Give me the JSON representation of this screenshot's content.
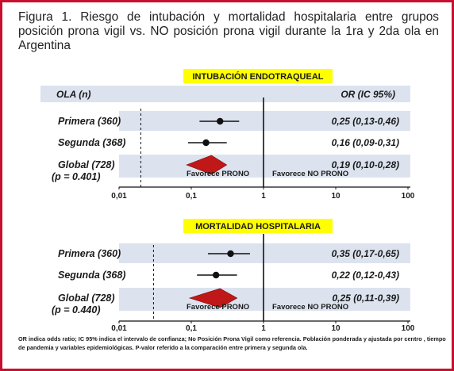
{
  "title": "Figura 1. Riesgo de intubación y mortalidad hospitalaria entre grupos posición prona vigil vs. NO posición prona vigil durante la 1ra y 2da ola en Argentina",
  "footnote": "OR indica odds ratio; IC 95% indica el intervalo de confianza; No Posición Prona Vigil  como referencia. Población ponderada y ajustada por centro , tiempo de pandemia y variables epidemiológicas. P-valor referido a la comparación entre primera y segunda ola.",
  "colors": {
    "frame": "#c8102e",
    "band": "#dce3ef",
    "header_box": "#ffff00",
    "diamond": "#c01818"
  },
  "chart_data": [
    {
      "type": "forest",
      "title": "INTUBACIÓN ENDOTRAQUEAL",
      "column_left": "OLA (n)",
      "column_right": "OR (IC 95%)",
      "xscale": "log",
      "xlim": [
        0.01,
        100
      ],
      "xticks": [
        "0,01",
        "0,1",
        "1",
        "10",
        "100"
      ],
      "reference_line": 0.02,
      "favors_left": "Favorece  PRONO",
      "favors_right": "Favorece NO PRONO",
      "rows": [
        {
          "label": "Primera (360)",
          "or": 0.25,
          "lo": 0.13,
          "hi": 0.46,
          "text": "0,25 (0,13-0,46)",
          "marker": "point"
        },
        {
          "label": "Segunda (368)",
          "or": 0.16,
          "lo": 0.09,
          "hi": 0.31,
          "text": "0,16 (0,09-0,31)",
          "marker": "point"
        },
        {
          "label": "Global (728)",
          "sublabel": "(p = 0.401)",
          "or": 0.19,
          "lo": 0.1,
          "hi": 0.28,
          "text": "0,19 (0,10-0,28)",
          "marker": "diamond"
        }
      ]
    },
    {
      "type": "forest",
      "title": "MORTALIDAD HOSPITALARIA",
      "xscale": "log",
      "xlim": [
        0.01,
        100
      ],
      "xticks": [
        "0,01",
        "0,1",
        "1",
        "10",
        "100"
      ],
      "reference_line": 0.03,
      "favors_left": "Favorece  PRONO",
      "favors_right": "Favorece NO PRONO",
      "rows": [
        {
          "label": "Primera (360)",
          "or": 0.35,
          "lo": 0.17,
          "hi": 0.65,
          "text": "0,35 (0,17-0,65)",
          "marker": "point"
        },
        {
          "label": "Segunda (368)",
          "or": 0.22,
          "lo": 0.12,
          "hi": 0.43,
          "text": "0,22 (0,12-0,43)",
          "marker": "point"
        },
        {
          "label": "Global (728)",
          "sublabel": "(p = 0.440)",
          "or": 0.25,
          "lo": 0.11,
          "hi": 0.39,
          "text": "0,25 (0,11-0,39)",
          "marker": "diamond"
        }
      ]
    }
  ]
}
